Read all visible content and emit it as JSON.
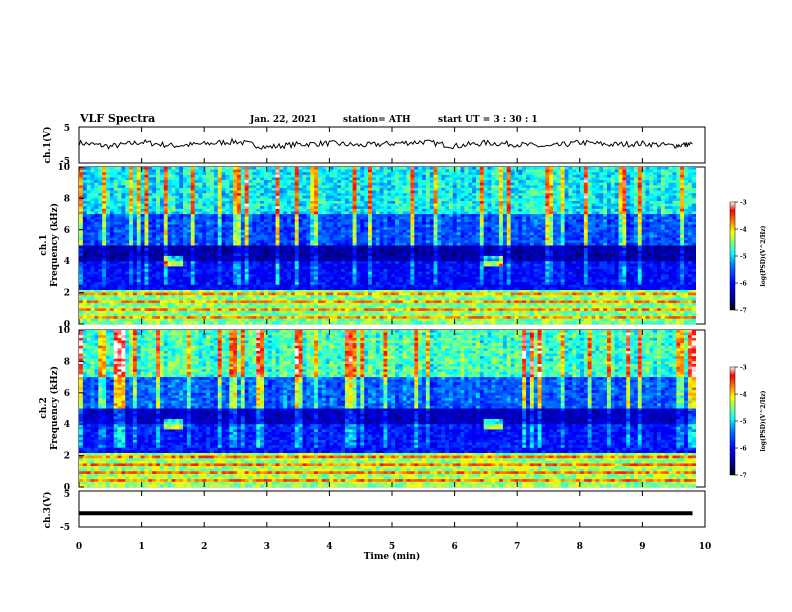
{
  "header": {
    "title": "VLF Spectra",
    "date": "Jan. 22, 2021",
    "station": "station= ATH",
    "start": "start UT =  3 : 30 : 1"
  },
  "colors": {
    "spectrum_scale": [
      "#000080",
      "#0000ff",
      "#0080ff",
      "#00ffff",
      "#80ff80",
      "#ffff00",
      "#ff8000",
      "#ff0000",
      "#ffc0c0",
      "#ffffff"
    ]
  },
  "chart_data": [
    {
      "type": "line",
      "id": "ch1_waveform",
      "ylabel": "ch.1(V)",
      "ylim": [
        -5,
        5
      ],
      "yticks": [
        "5",
        "-5"
      ],
      "x": [
        0,
        0.5,
        1,
        1.5,
        2,
        2.5,
        3,
        3.5,
        4,
        4.5,
        5,
        5.5,
        6,
        6.5,
        7,
        7.5,
        8,
        8.5,
        9,
        9.5,
        9.8
      ],
      "values": [
        0.6,
        -0.4,
        0.8,
        -0.2,
        0.3,
        1.0,
        -0.6,
        0.2,
        0.5,
        -0.1,
        0.4,
        0.9,
        -0.3,
        0.6,
        0.2,
        -0.5,
        0.7,
        0.1,
        0.4,
        -0.2,
        0.3
      ],
      "xlim": [
        0,
        10
      ]
    },
    {
      "type": "heatmap",
      "id": "ch1_spectrogram",
      "ylabel": "Frequency (kHz)",
      "channel_label": "ch.1",
      "ylim": [
        0,
        10
      ],
      "yticks": [
        "0",
        "2",
        "4",
        "6",
        "8",
        "10"
      ],
      "xlim": [
        0,
        10
      ],
      "colorbar": {
        "label": "log(PSD)(V^2/Hz)",
        "range": [
          -7,
          -3
        ],
        "ticks": [
          "-3",
          "-4",
          "-5",
          "-6",
          "-7"
        ]
      },
      "bands": [
        {
          "f": [
            0,
            2.2
          ],
          "level": -4.5
        },
        {
          "f": [
            2.2,
            4.0
          ],
          "level": -6.0
        },
        {
          "f": [
            4.0,
            5.0
          ],
          "level": -6.7
        },
        {
          "f": [
            5.0,
            7.0
          ],
          "level": -5.6
        },
        {
          "f": [
            7.0,
            10.0
          ],
          "level": -4.9
        }
      ]
    },
    {
      "type": "heatmap",
      "id": "ch2_spectrogram",
      "ylabel": "Frequency (kHz)",
      "channel_label": "ch.2",
      "ylim": [
        0,
        10
      ],
      "yticks": [
        "0",
        "2",
        "4",
        "6",
        "8",
        "10"
      ],
      "xlim": [
        0,
        10
      ],
      "colorbar": {
        "label": "log(PSD)(V^2/Hz)",
        "range": [
          -7,
          -3
        ],
        "ticks": [
          "-3",
          "-4",
          "-5",
          "-6",
          "-7"
        ]
      },
      "bands": [
        {
          "f": [
            0,
            2.2
          ],
          "level": -4.4
        },
        {
          "f": [
            2.2,
            4.0
          ],
          "level": -5.9
        },
        {
          "f": [
            4.0,
            5.0
          ],
          "level": -6.5
        },
        {
          "f": [
            5.0,
            7.0
          ],
          "level": -5.5
        },
        {
          "f": [
            7.0,
            10.0
          ],
          "level": -4.7
        }
      ]
    },
    {
      "type": "line",
      "id": "ch3_waveform",
      "ylabel": "ch.3(V)",
      "ylim": [
        -5,
        5
      ],
      "yticks": [
        "5",
        "-5"
      ],
      "x": [
        0,
        9.8
      ],
      "values": [
        -1.2,
        -1.2
      ],
      "xlim": [
        0,
        10
      ],
      "xlabel": "Time (min)",
      "xticks": [
        "0",
        "1",
        "2",
        "3",
        "4",
        "5",
        "6",
        "7",
        "8",
        "9",
        "10"
      ]
    }
  ]
}
